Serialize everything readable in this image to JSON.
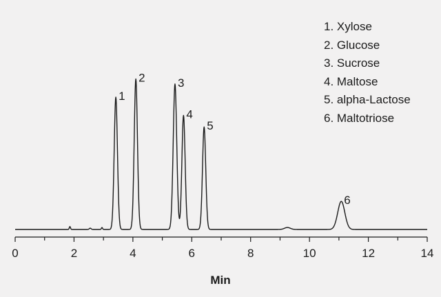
{
  "chart_data": {
    "type": "line",
    "title": "",
    "xlabel": "Min",
    "ylabel": "",
    "xlim": [
      0,
      14
    ],
    "x_ticks": [
      "0",
      "2",
      "4",
      "6",
      "8",
      "10",
      "12",
      "14"
    ],
    "grid": false,
    "legend_position": "top-right",
    "line_color": "#1a1a1a",
    "peaks": [
      {
        "label": "1",
        "x": 3.42,
        "height": 0.8,
        "width": 0.055
      },
      {
        "label": "2",
        "x": 4.1,
        "height": 0.91,
        "width": 0.055
      },
      {
        "label": "3",
        "x": 5.43,
        "height": 0.88,
        "width": 0.06
      },
      {
        "label": "4",
        "x": 5.72,
        "height": 0.69,
        "width": 0.055
      },
      {
        "label": "5",
        "x": 6.42,
        "height": 0.62,
        "width": 0.055
      },
      {
        "label": "6",
        "x": 11.08,
        "height": 0.17,
        "width": 0.12
      }
    ],
    "legend": [
      "1. Xylose",
      "2. Glucose",
      "3. Sucrose",
      "4. Maltose",
      "5. alpha-Lactose",
      "6. Maltotriose"
    ]
  }
}
